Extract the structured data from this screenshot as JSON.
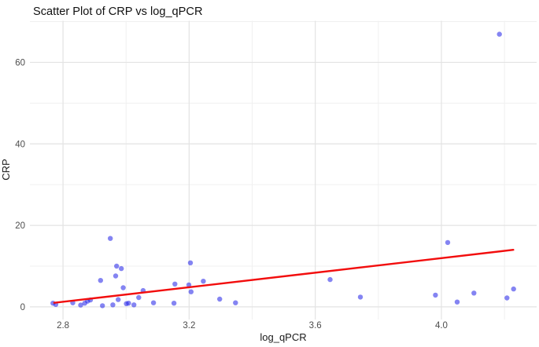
{
  "page": {
    "background": "#ffffff"
  },
  "chart_data": {
    "type": "scatter",
    "title": "Scatter Plot of CRP vs log_qPCR",
    "xlabel": "log_qPCR",
    "ylabel": "CRP",
    "xlim": [
      2.695,
      4.302
    ],
    "ylim": [
      -3.1,
      70.2
    ],
    "grid": {
      "major_color": "#e3e3e3",
      "minor_color": "#f0f0f0",
      "major_width": 1.2,
      "minor_width": 1
    },
    "x_ticks": {
      "values": [
        2.8,
        3.2,
        3.6,
        4.0
      ],
      "labels": [
        "2.8",
        "3.2",
        "3.6",
        "4.0"
      ],
      "minor": [
        3.0,
        3.4,
        3.8,
        4.2
      ]
    },
    "y_ticks": {
      "values": [
        0,
        20,
        40,
        60
      ],
      "labels": [
        "0",
        "20",
        "40",
        "60"
      ],
      "minor": [
        10,
        30,
        50,
        70
      ]
    },
    "points": [
      [
        2.768,
        0.9
      ],
      [
        2.777,
        0.6
      ],
      [
        2.831,
        1.0
      ],
      [
        2.856,
        0.45
      ],
      [
        2.869,
        0.9
      ],
      [
        2.878,
        1.4
      ],
      [
        2.887,
        1.7
      ],
      [
        2.919,
        6.5
      ],
      [
        2.925,
        0.3
      ],
      [
        2.95,
        16.8
      ],
      [
        2.958,
        0.5
      ],
      [
        2.967,
        7.6
      ],
      [
        2.97,
        10.0
      ],
      [
        2.975,
        1.8
      ],
      [
        2.985,
        9.4
      ],
      [
        2.991,
        4.7
      ],
      [
        3.001,
        0.8
      ],
      [
        3.008,
        0.9
      ],
      [
        3.025,
        0.5
      ],
      [
        3.04,
        2.3
      ],
      [
        3.054,
        4.0
      ],
      [
        3.087,
        1.0
      ],
      [
        3.152,
        0.9
      ],
      [
        3.155,
        5.6
      ],
      [
        3.199,
        5.4
      ],
      [
        3.204,
        10.8
      ],
      [
        3.206,
        3.7
      ],
      [
        3.245,
        6.3
      ],
      [
        3.297,
        1.9
      ],
      [
        3.347,
        1.0
      ],
      [
        3.647,
        6.7
      ],
      [
        3.743,
        2.4
      ],
      [
        3.981,
        2.9
      ],
      [
        4.02,
        15.8
      ],
      [
        4.05,
        1.2
      ],
      [
        4.103,
        3.4
      ],
      [
        4.184,
        66.9
      ],
      [
        4.208,
        2.2
      ],
      [
        4.229,
        4.4
      ]
    ],
    "point_style": {
      "color": "#1f1fe8",
      "opacity": 0.55,
      "radius": 3.2
    },
    "trend_line": {
      "x1": 2.772,
      "y1": 1.0,
      "x2": 4.228,
      "y2": 14.0,
      "color": "#f20d0d",
      "width": 2.4
    },
    "legend": false,
    "text_colors": {
      "title": "#111111",
      "axis_title": "#1a1a1a",
      "tick": "#4d4d4d"
    }
  }
}
